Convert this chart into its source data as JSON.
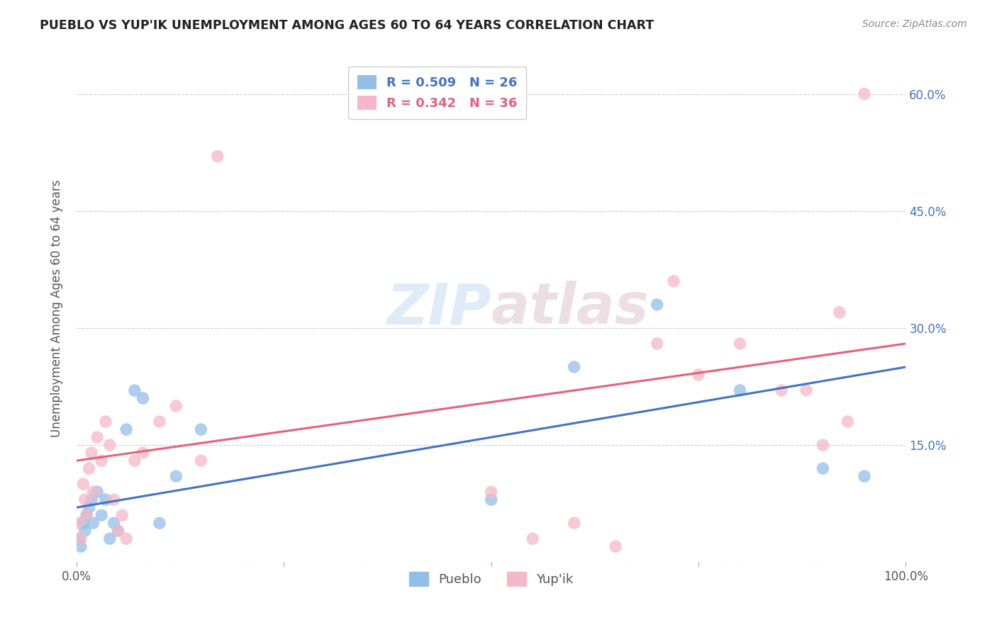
{
  "title": "PUEBLO VS YUP'IK UNEMPLOYMENT AMONG AGES 60 TO 64 YEARS CORRELATION CHART",
  "source": "Source: ZipAtlas.com",
  "ylabel": "Unemployment Among Ages 60 to 64 years",
  "background_color": "#ffffff",
  "xlim": [
    0,
    100
  ],
  "ylim": [
    0,
    65
  ],
  "pueblo_color": "#92bfe8",
  "yupik_color": "#f5b8c8",
  "pueblo_line_color": "#4472c4",
  "yupik_line_color": "#e8607a",
  "pueblo_R": 0.509,
  "pueblo_N": 26,
  "yupik_R": 0.342,
  "yupik_N": 36,
  "pueblo_x": [
    0.3,
    0.5,
    0.8,
    1.0,
    1.2,
    1.5,
    1.8,
    2.0,
    2.5,
    3.0,
    3.5,
    4.0,
    4.5,
    5.0,
    6.0,
    7.0,
    8.0,
    10.0,
    12.0,
    15.0,
    50.0,
    60.0,
    70.0,
    80.0,
    90.0,
    95.0
  ],
  "pueblo_y": [
    3,
    2,
    5,
    4,
    6,
    7,
    8,
    5,
    9,
    6,
    8,
    3,
    5,
    4,
    17,
    22,
    21,
    5,
    11,
    17,
    8,
    25,
    33,
    22,
    12,
    11
  ],
  "yupik_x": [
    0.2,
    0.5,
    0.8,
    1.0,
    1.2,
    1.5,
    1.8,
    2.0,
    2.5,
    3.0,
    3.5,
    4.0,
    4.5,
    5.0,
    5.5,
    6.0,
    7.0,
    8.0,
    10.0,
    12.0,
    15.0,
    17.0,
    50.0,
    55.0,
    60.0,
    65.0,
    70.0,
    72.0,
    75.0,
    80.0,
    85.0,
    88.0,
    90.0,
    92.0,
    93.0,
    95.0
  ],
  "yupik_y": [
    5,
    3,
    10,
    8,
    6,
    12,
    14,
    9,
    16,
    13,
    18,
    15,
    8,
    4,
    6,
    3,
    13,
    14,
    18,
    20,
    13,
    52,
    9,
    3,
    5,
    2,
    28,
    36,
    24,
    28,
    22,
    22,
    15,
    32,
    18,
    60
  ],
  "pueblo_line_x0": 0,
  "pueblo_line_y0": 7.0,
  "pueblo_line_x1": 100,
  "pueblo_line_y1": 25.0,
  "yupik_line_x0": 0,
  "yupik_line_y0": 13.0,
  "yupik_line_x1": 100,
  "yupik_line_y1": 28.0
}
